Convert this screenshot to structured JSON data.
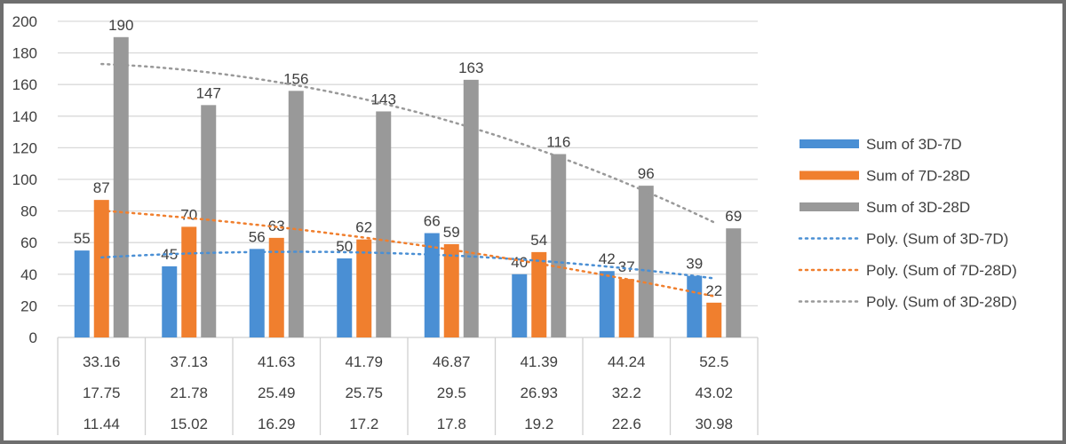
{
  "chart_data": {
    "type": "bar",
    "title": "",
    "xlabel": "",
    "ylabel": "",
    "ylim": [
      0,
      200
    ],
    "yticks": [
      0,
      20,
      40,
      60,
      80,
      100,
      120,
      140,
      160,
      180,
      200
    ],
    "grid": true,
    "legend_position": "right",
    "data_table_rows": [
      [
        "33.16",
        "37.13",
        "41.63",
        "41.79",
        "46.87",
        "41.39",
        "44.24",
        "52.5"
      ],
      [
        "17.75",
        "21.78",
        "25.49",
        "25.75",
        "29.5",
        "26.93",
        "32.2",
        "43.02"
      ],
      [
        "11.44",
        "15.02",
        "16.29",
        "17.2",
        "17.8",
        "19.2",
        "22.6",
        "30.98"
      ]
    ],
    "series": [
      {
        "name": "Sum of 3D-7D",
        "color": "#4a8fd4",
        "values": [
          55,
          45,
          56,
          50,
          66,
          40,
          42,
          39
        ]
      },
      {
        "name": "Sum of 7D-28D",
        "color": "#f07f2e",
        "values": [
          87,
          70,
          63,
          62,
          59,
          54,
          37,
          22
        ]
      },
      {
        "name": "Sum of 3D-28D",
        "color": "#999999",
        "values": [
          190,
          147,
          156,
          143,
          163,
          116,
          96,
          69
        ]
      }
    ],
    "trendlines": [
      {
        "name": "Poly. (Sum of 3D-7D)",
        "type": "polynomial",
        "of_series": 0,
        "color": "#4a8fd4",
        "style": "dotted"
      },
      {
        "name": "Poly. (Sum of 7D-28D)",
        "type": "polynomial",
        "of_series": 1,
        "color": "#f07f2e",
        "style": "dotted"
      },
      {
        "name": "Poly. (Sum of 3D-28D)",
        "type": "polynomial",
        "of_series": 2,
        "color": "#999999",
        "style": "dotted"
      }
    ]
  }
}
